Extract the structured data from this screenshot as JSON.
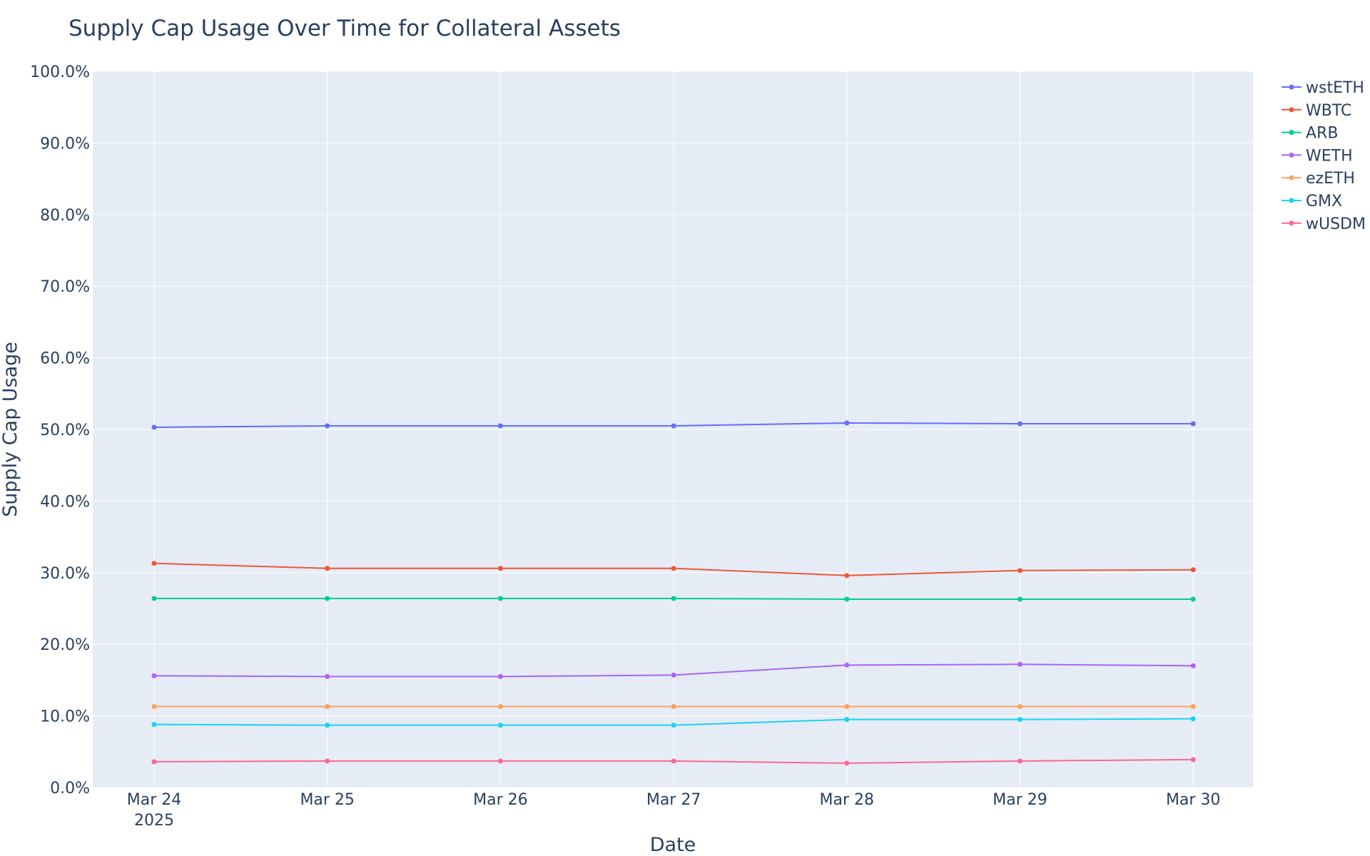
{
  "chart_data": {
    "type": "line",
    "title": "Supply Cap Usage Over Time for Collateral Assets",
    "xlabel": "Date",
    "ylabel": "Supply Cap Usage",
    "x": [
      "2025-03-24",
      "2025-03-25",
      "2025-03-26",
      "2025-03-27",
      "2025-03-28",
      "2025-03-29",
      "2025-03-30"
    ],
    "x_tick_labels": [
      "Mar 24",
      "Mar 25",
      "Mar 26",
      "Mar 27",
      "Mar 28",
      "Mar 29",
      "Mar 30"
    ],
    "x_year_label": "2025",
    "ylim": [
      0,
      100
    ],
    "y_ticks": [
      0,
      10,
      20,
      30,
      40,
      50,
      60,
      70,
      80,
      90,
      100
    ],
    "y_tick_labels": [
      "0.0%",
      "10.0%",
      "20.0%",
      "30.0%",
      "40.0%",
      "50.0%",
      "60.0%",
      "70.0%",
      "80.0%",
      "90.0%",
      "100.0%"
    ],
    "grid": true,
    "legend_position": "top-right",
    "series": [
      {
        "name": "wstETH",
        "color": "#636efa",
        "values": [
          50.3,
          50.5,
          50.5,
          50.5,
          50.9,
          50.8,
          50.8
        ]
      },
      {
        "name": "WBTC",
        "color": "#ef553b",
        "values": [
          31.3,
          30.6,
          30.6,
          30.6,
          29.6,
          30.3,
          30.4
        ]
      },
      {
        "name": "ARB",
        "color": "#00cc96",
        "values": [
          26.4,
          26.4,
          26.4,
          26.4,
          26.3,
          26.3,
          26.3
        ]
      },
      {
        "name": "WETH",
        "color": "#ab63fa",
        "values": [
          15.6,
          15.5,
          15.5,
          15.7,
          17.1,
          17.2,
          17.0
        ]
      },
      {
        "name": "ezETH",
        "color": "#ffa15a",
        "values": [
          11.3,
          11.3,
          11.3,
          11.3,
          11.3,
          11.3,
          11.3
        ]
      },
      {
        "name": "GMX",
        "color": "#19d3f3",
        "values": [
          8.8,
          8.7,
          8.7,
          8.7,
          9.5,
          9.5,
          9.6
        ]
      },
      {
        "name": "wUSDM",
        "color": "#ff6692",
        "values": [
          3.6,
          3.7,
          3.7,
          3.7,
          3.4,
          3.7,
          3.9
        ]
      }
    ]
  }
}
